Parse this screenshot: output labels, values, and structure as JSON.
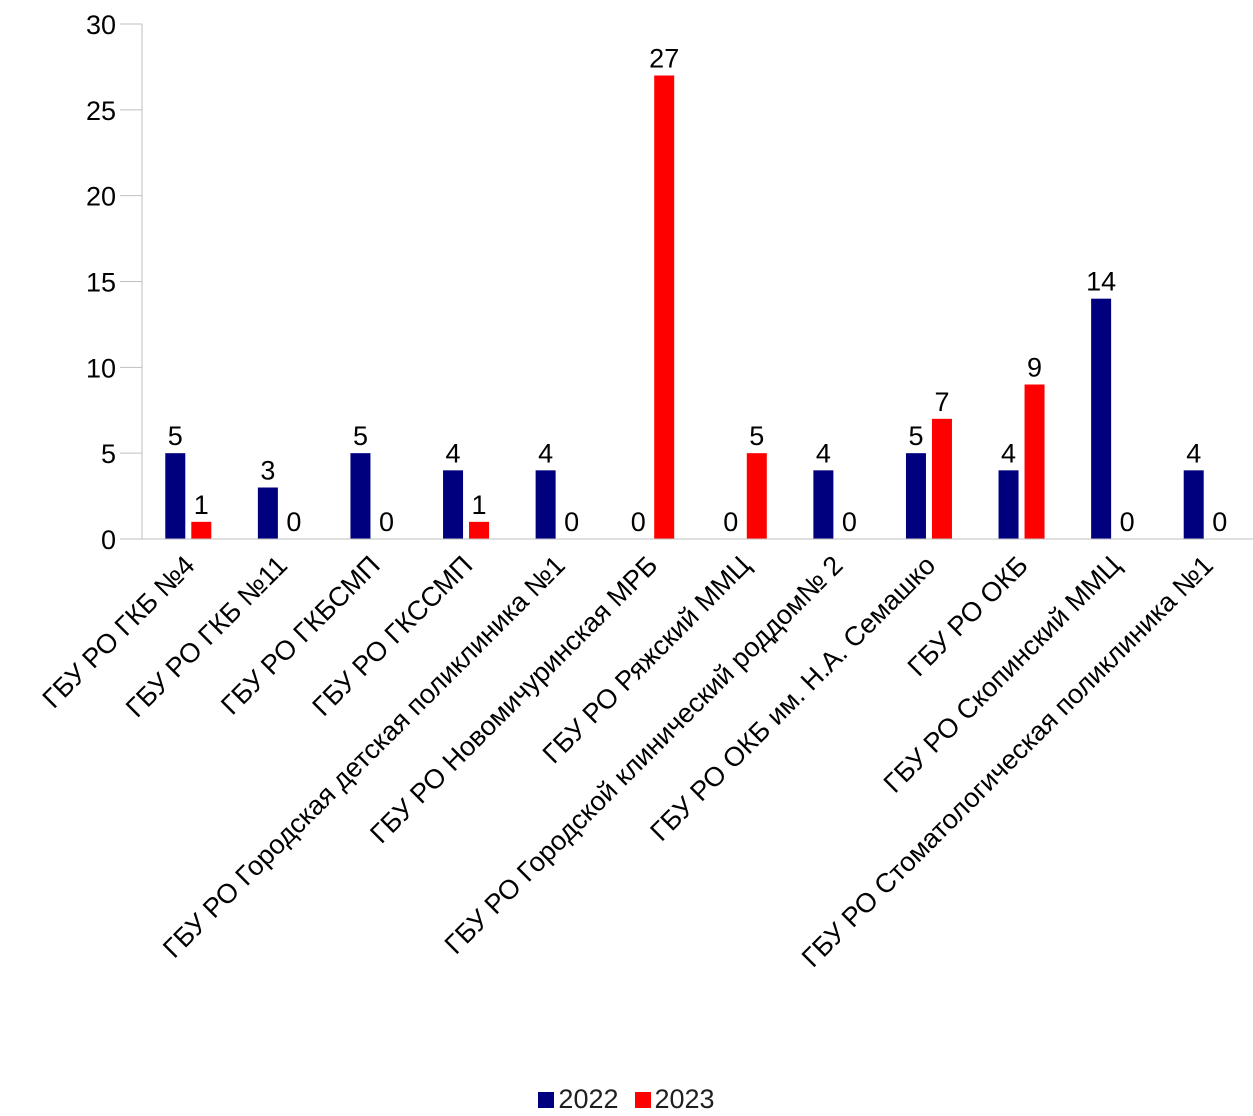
{
  "chart_data": {
    "type": "bar",
    "categories": [
      "ГБУ РО ГКБ №4",
      "ГБУ РО ГКБ №11",
      "ГБУ РО ГКБСМП",
      "ГБУ РО ГКССМП",
      "ГБУ РО Городская детская поликлиника №1",
      "ГБУ РО Новомичуринская МРБ",
      "ГБУ РО Ряжский ММЦ",
      "ГБУ РО Городской клинический роддом№ 2",
      "ГБУ РО ОКБ им. Н.А. Семашко",
      "ГБУ РО ОКБ",
      "ГБУ РО Скопинский ММЦ",
      "ГБУ РО Стоматологическая поликлиника №1"
    ],
    "series": [
      {
        "name": "2022",
        "color": "#00007f",
        "values": [
          5,
          3,
          5,
          4,
          4,
          0,
          0,
          4,
          5,
          4,
          14,
          4
        ]
      },
      {
        "name": "2023",
        "color": "#ff0000",
        "values": [
          1,
          0,
          0,
          1,
          0,
          27,
          5,
          0,
          7,
          9,
          0,
          0
        ]
      }
    ],
    "yticks": [
      0,
      5,
      10,
      15,
      20,
      25,
      30
    ],
    "ylim": [
      0,
      30
    ],
    "grid": false,
    "legend_position": "bottom",
    "data_labels": true,
    "title": "",
    "xlabel": "",
    "ylabel": ""
  }
}
